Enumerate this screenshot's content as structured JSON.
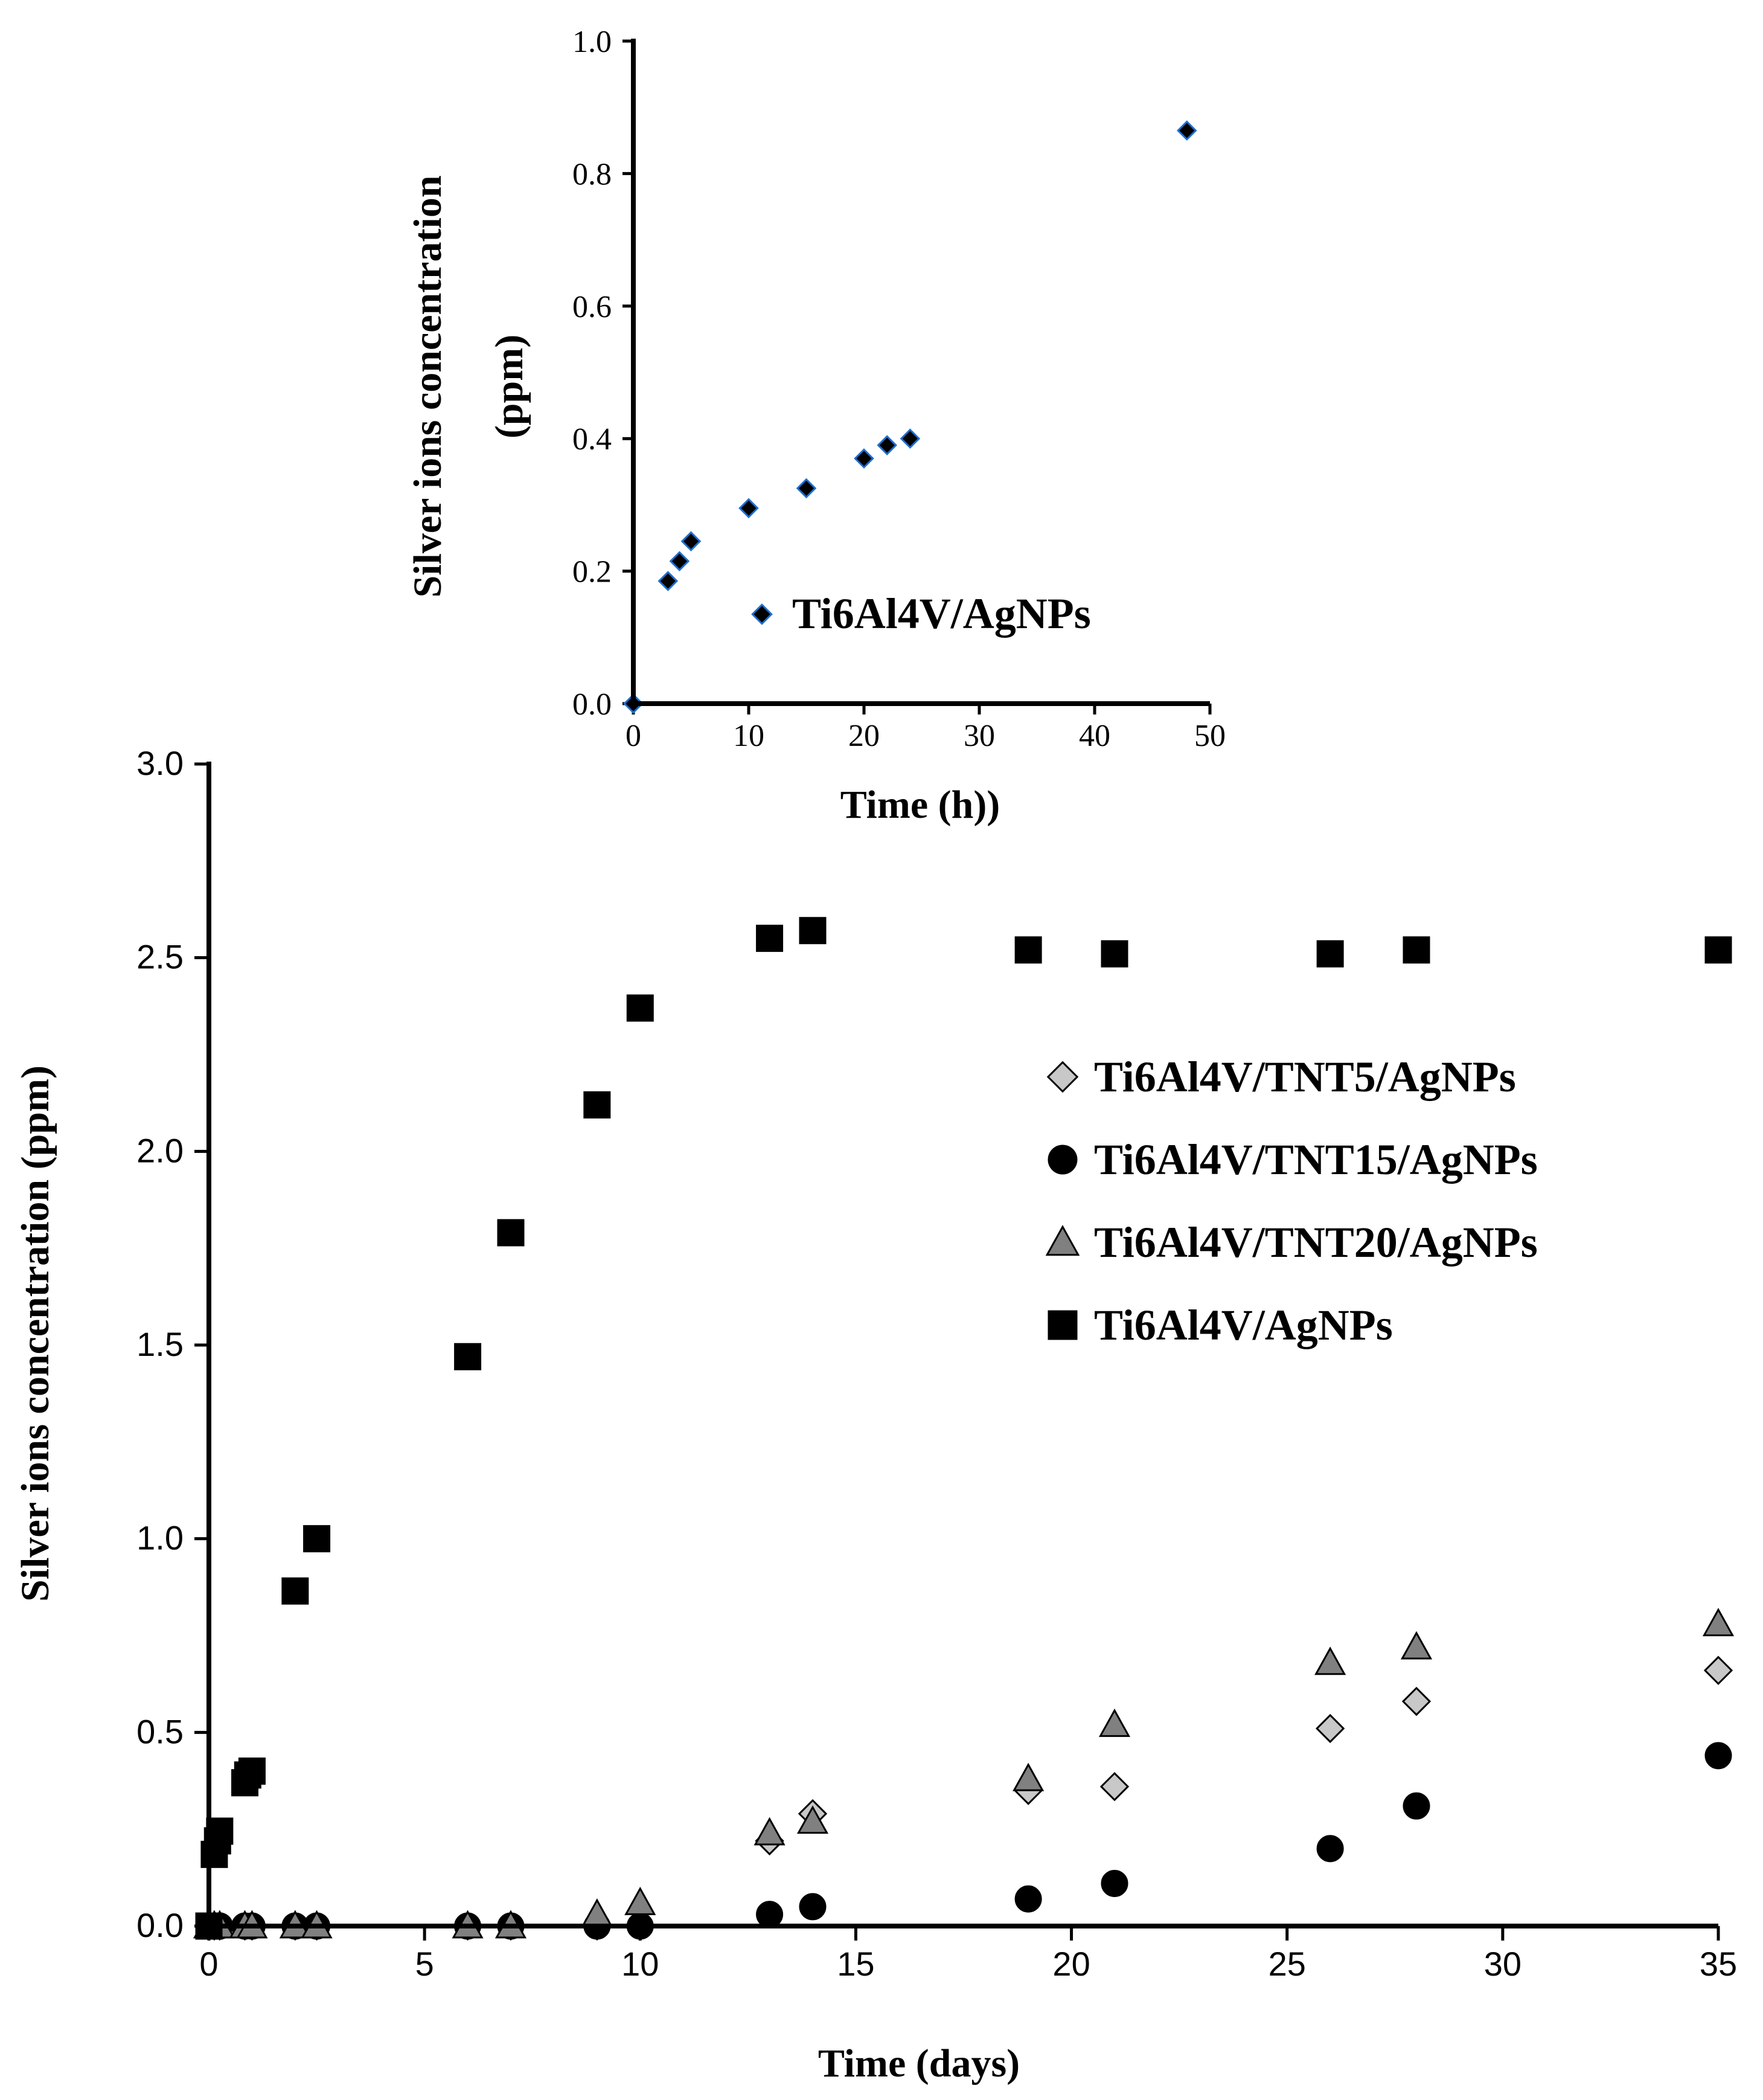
{
  "chart_data": [
    {
      "id": "main",
      "type": "scatter",
      "xlabel": "Time (days)",
      "ylabel": "Silver ions concentration (ppm)",
      "xlim": [
        0,
        35
      ],
      "ylim": [
        0,
        3.0
      ],
      "x_ticks": [
        "0",
        "5",
        "10",
        "15",
        "20",
        "25",
        "30",
        "35"
      ],
      "y_ticks": [
        "0.0",
        "0.5",
        "1.0",
        "1.5",
        "2.0",
        "2.5",
        "3.0"
      ],
      "grid": false,
      "legend_position": "right",
      "series": [
        {
          "name": "Ti6Al4V/TNT5/AgNPs",
          "marker": "diamond",
          "color": "#c8c8c8",
          "x": [
            0,
            0.125,
            0.25,
            0.833,
            1,
            2,
            2.5,
            6,
            7,
            9,
            10,
            13,
            14,
            19,
            21,
            26,
            28,
            35
          ],
          "y": [
            0,
            0,
            0,
            0,
            0,
            0,
            0,
            0,
            0,
            0,
            0,
            0.22,
            0.29,
            0.35,
            0.36,
            0.51,
            0.58,
            0.66
          ]
        },
        {
          "name": "Ti6Al4V/TNT15/AgNPs",
          "marker": "circle",
          "color": "#000000",
          "x": [
            0,
            0.125,
            0.25,
            0.833,
            1,
            2,
            2.5,
            6,
            7,
            9,
            10,
            13,
            14,
            19,
            21,
            26,
            28,
            35
          ],
          "y": [
            0,
            0,
            0,
            0,
            0,
            0,
            0,
            0,
            0,
            0,
            0,
            0.03,
            0.05,
            0.07,
            0.11,
            0.2,
            0.31,
            0.44
          ]
        },
        {
          "name": "Ti6Al4V/TNT20/AgNPs",
          "marker": "triangle",
          "color": "#808080",
          "x": [
            0,
            0.125,
            0.25,
            0.833,
            1,
            2,
            2.5,
            6,
            7,
            9,
            10,
            13,
            14,
            19,
            21,
            26,
            28,
            35
          ],
          "y": [
            0,
            0,
            0,
            0,
            0,
            0,
            0,
            0,
            0,
            0.03,
            0.06,
            0.24,
            0.27,
            0.38,
            0.52,
            0.68,
            0.72,
            0.78
          ]
        },
        {
          "name": "Ti6Al4V/AgNPs",
          "marker": "square",
          "color": "#000000",
          "x": [
            0,
            0.125,
            0.2,
            0.25,
            0.833,
            0.9,
            1,
            2,
            2.5,
            6,
            7,
            9,
            10,
            13,
            14,
            19,
            21,
            26,
            28,
            35
          ],
          "y": [
            0,
            0.185,
            0.22,
            0.245,
            0.37,
            0.39,
            0.4,
            0.865,
            1.0,
            1.47,
            1.79,
            2.12,
            2.37,
            2.55,
            2.57,
            2.52,
            2.51,
            2.51,
            2.52,
            2.52
          ]
        }
      ]
    },
    {
      "id": "inset",
      "type": "scatter",
      "xlabel": "Time (h))",
      "ylabel_line1": "Silver ions concentration",
      "ylabel_line2": "(ppm)",
      "xlim": [
        0,
        50
      ],
      "ylim": [
        0,
        1.0
      ],
      "x_ticks": [
        "0",
        "10",
        "20",
        "30",
        "40",
        "50"
      ],
      "y_ticks": [
        "0.0",
        "0.2",
        "0.4",
        "0.6",
        "0.8",
        "1.0"
      ],
      "grid": false,
      "legend_position": "bottom-left",
      "series": [
        {
          "name": "Ti6Al4V/AgNPs",
          "marker": "diamond",
          "color": "#000000",
          "edge_color": "#1f6fd1",
          "x": [
            0,
            3,
            4,
            5,
            10,
            15,
            20,
            22,
            24,
            48
          ],
          "y": [
            0,
            0.185,
            0.215,
            0.245,
            0.295,
            0.325,
            0.37,
            0.39,
            0.4,
            0.865
          ]
        }
      ]
    }
  ]
}
